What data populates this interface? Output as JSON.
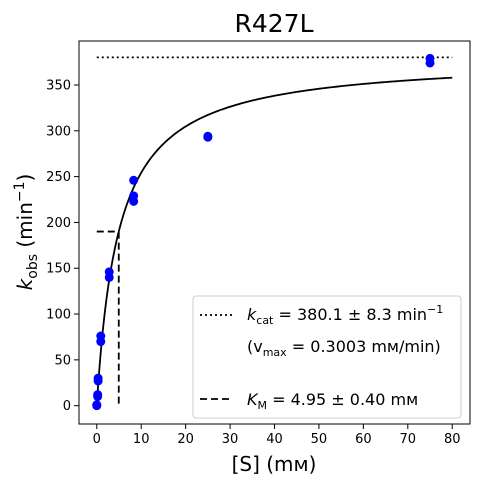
{
  "chart_data": {
    "type": "scatter",
    "title": "R427L",
    "xlabel": "[S] (mм)",
    "ylabel": {
      "base": "k",
      "sub": "obs",
      "unit": " (min",
      "sup": "−1",
      "close": ")"
    },
    "xlim": [
      -4,
      84
    ],
    "ylim": [
      -20,
      398
    ],
    "xticks": [
      0,
      10,
      20,
      30,
      40,
      50,
      60,
      70,
      80
    ],
    "yticks": [
      0,
      50,
      100,
      150,
      200,
      250,
      300,
      350
    ],
    "grid": false,
    "legend_position": "bottom-right",
    "colors": {
      "points": "#0000ff",
      "lines": "#000000"
    },
    "points": [
      {
        "x": 0,
        "y": 0
      },
      {
        "x": 0,
        "y": 1
      },
      {
        "x": 0.2,
        "y": 10
      },
      {
        "x": 0.2,
        "y": 12
      },
      {
        "x": 0.3,
        "y": 27
      },
      {
        "x": 0.3,
        "y": 30
      },
      {
        "x": 0.9,
        "y": 70
      },
      {
        "x": 0.9,
        "y": 76
      },
      {
        "x": 2.8,
        "y": 140
      },
      {
        "x": 2.8,
        "y": 146
      },
      {
        "x": 8.3,
        "y": 223
      },
      {
        "x": 8.3,
        "y": 229
      },
      {
        "x": 8.3,
        "y": 246
      },
      {
        "x": 25,
        "y": 293
      },
      {
        "x": 25,
        "y": 294
      },
      {
        "x": 75,
        "y": 374
      },
      {
        "x": 75,
        "y": 379
      }
    ],
    "fit": {
      "kcat": 380.1,
      "km": 4.95,
      "x_range": [
        0,
        80
      ]
    },
    "reference_lines": {
      "kcat_line": {
        "y": 380.1,
        "x_range": [
          0,
          80
        ]
      },
      "km_line": {
        "x": 4.95,
        "y": 190
      }
    },
    "legend": {
      "kcat": {
        "sym": "k",
        "sub": "cat",
        "text": " = 380.1 ± 8.3 min",
        "sup": "−1"
      },
      "vmax": {
        "open": "(v",
        "sub": "max",
        "text": " = 0.3003 mм/min)"
      },
      "km": {
        "sym": "K",
        "sub": "M",
        "text": " = 4.95 ± 0.40 mм"
      }
    }
  }
}
